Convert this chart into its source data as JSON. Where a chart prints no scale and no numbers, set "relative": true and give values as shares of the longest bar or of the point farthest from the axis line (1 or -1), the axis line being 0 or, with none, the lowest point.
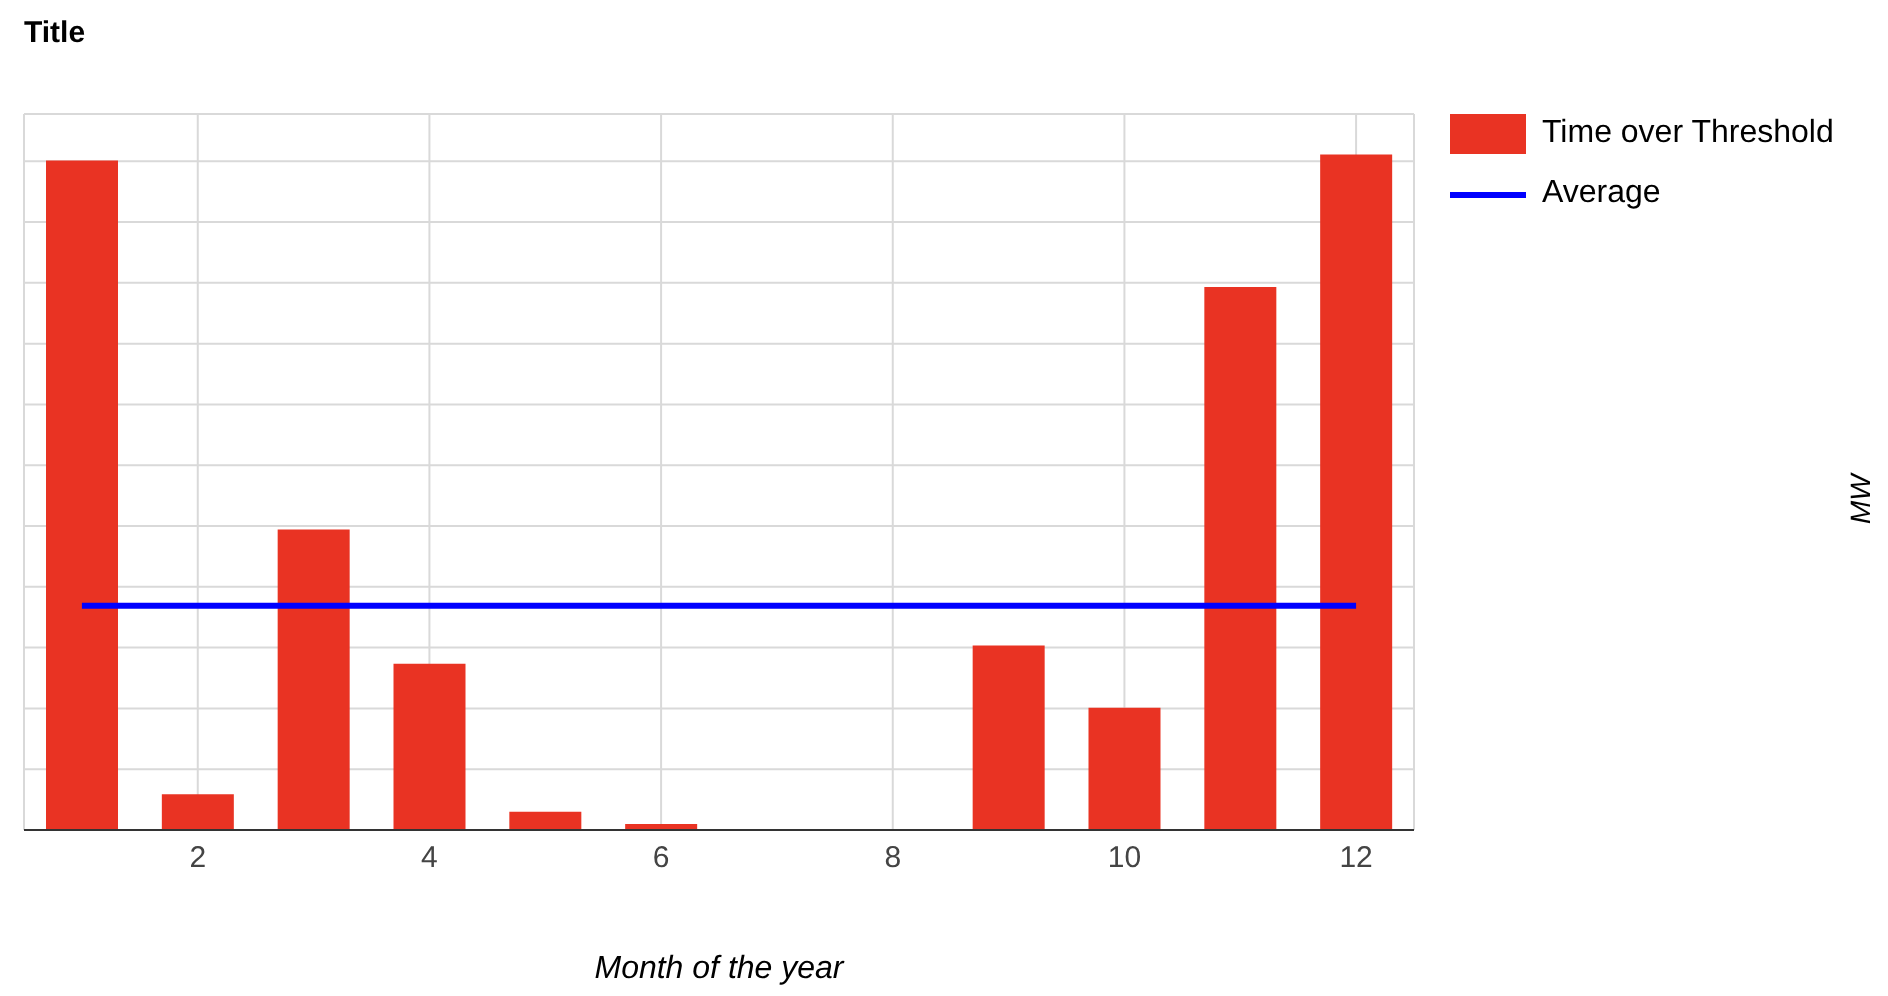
{
  "chart_data": {
    "type": "bar",
    "title": "Title",
    "xlabel": "Month of the year",
    "annotations": [
      "MW"
    ],
    "relative": true,
    "x": [
      1,
      2,
      3,
      4,
      5,
      6,
      7,
      8,
      9,
      10,
      11,
      12
    ],
    "xlim": [
      0.5,
      12.5
    ],
    "xticks": [
      2,
      4,
      6,
      8,
      10,
      12
    ],
    "grid": true,
    "legend": "top right",
    "series": [
      {
        "name": "Time over Threshold",
        "color": "#e93323",
        "values": [
          0.991,
          0.053,
          0.445,
          0.246,
          0.027,
          0.009,
          0,
          0,
          0.273,
          0.181,
          0.804,
          1
        ]
      },
      {
        "name": "Average",
        "type": "line",
        "color": "#0000ff",
        "x": [
          1,
          12
        ],
        "values": [
          0.332,
          0.332
        ],
        "marker": "none",
        "line_style": "solid"
      }
    ]
  }
}
